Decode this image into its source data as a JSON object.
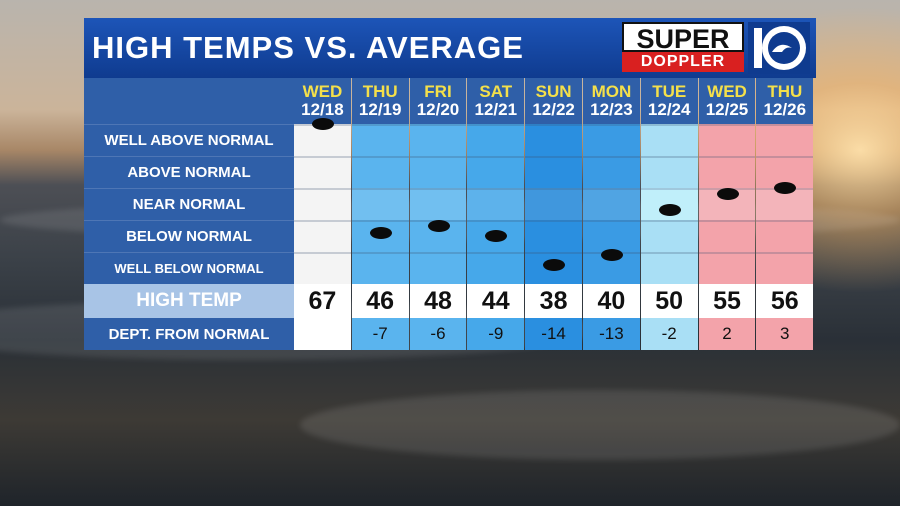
{
  "header": {
    "title": "HIGH TEMPS VS. AVERAGE"
  },
  "logo": {
    "line1": "SUPER",
    "line2": "DOPPLER",
    "mark": "10"
  },
  "categories": [
    "WELL ABOVE NORMAL",
    "ABOVE NORMAL",
    "NEAR NORMAL",
    "BELOW NORMAL",
    "WELL BELOW NORMAL"
  ],
  "labels": {
    "high_temp": "HIGH TEMP",
    "departure": "DEPT. FROM NORMAL"
  },
  "days": [
    {
      "dow": "WED",
      "date": "12/18",
      "high": "67",
      "dept": "",
      "color": "#f4f4f4",
      "level": 0.0
    },
    {
      "dow": "THU",
      "date": "12/19",
      "high": "46",
      "dept": "-7",
      "color": "#5ab4ee",
      "level": 3.4
    },
    {
      "dow": "FRI",
      "date": "12/20",
      "high": "48",
      "dept": "-6",
      "color": "#5ab4ee",
      "level": 3.2
    },
    {
      "dow": "SAT",
      "date": "12/21",
      "high": "44",
      "dept": "-9",
      "color": "#46a8ea",
      "level": 3.5
    },
    {
      "dow": "SUN",
      "date": "12/22",
      "high": "38",
      "dept": "-14",
      "color": "#2a8fe0",
      "level": 4.4
    },
    {
      "dow": "MON",
      "date": "12/23",
      "high": "40",
      "dept": "-13",
      "color": "#3a9be4",
      "level": 4.1
    },
    {
      "dow": "TUE",
      "date": "12/24",
      "high": "50",
      "dept": "-2",
      "color": "#a9dff5",
      "level": 2.7
    },
    {
      "dow": "WED",
      "date": "12/25",
      "high": "55",
      "dept": "2",
      "color": "#f3a3aa",
      "level": 2.2
    },
    {
      "dow": "THU",
      "date": "12/26",
      "high": "56",
      "dept": "3",
      "color": "#f3a3aa",
      "level": 2.0
    }
  ]
}
